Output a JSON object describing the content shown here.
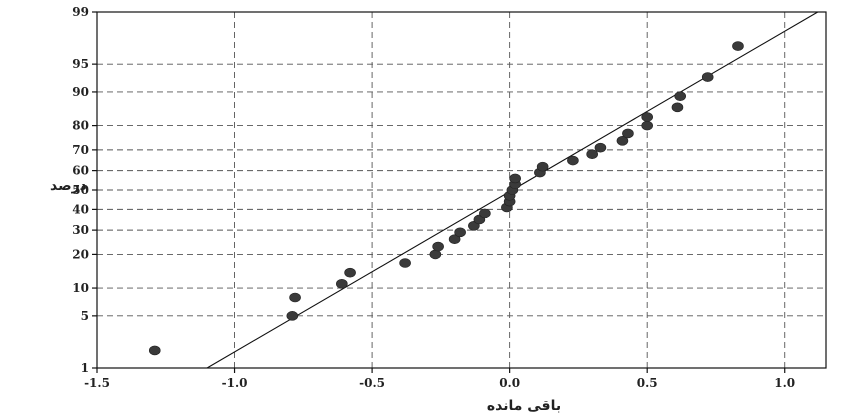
{
  "chart_data": {
    "type": "scatter",
    "title": "",
    "xlabel": "باقی مانده",
    "ylabel": "درصد",
    "xlim": [
      -1.5,
      1.15
    ],
    "x_ticks": [
      -1.5,
      -1.0,
      -0.5,
      0.0,
      0.5,
      1.0
    ],
    "x_tick_labels": [
      "-1.5",
      "-1.0",
      "-0.5",
      "0.0",
      "0.5",
      "1.0"
    ],
    "y_scale": "normal-probability",
    "ylim": [
      1,
      99
    ],
    "y_ticks": [
      1,
      5,
      10,
      20,
      30,
      40,
      50,
      60,
      70,
      80,
      90,
      95,
      99
    ],
    "y_tick_labels": [
      "1",
      "5",
      "10",
      "20",
      "30",
      "40",
      "50",
      "60",
      "70",
      "80",
      "90",
      "95",
      "99"
    ],
    "grid": true,
    "fit_line": {
      "x": [
        -1.1,
        1.12
      ],
      "y": [
        1,
        99
      ]
    },
    "points": [
      {
        "x": -1.29,
        "y": 1.8
      },
      {
        "x": -0.79,
        "y": 5
      },
      {
        "x": -0.78,
        "y": 8
      },
      {
        "x": -0.61,
        "y": 11
      },
      {
        "x": -0.58,
        "y": 14
      },
      {
        "x": -0.38,
        "y": 17
      },
      {
        "x": -0.27,
        "y": 20
      },
      {
        "x": -0.26,
        "y": 23
      },
      {
        "x": -0.2,
        "y": 26
      },
      {
        "x": -0.18,
        "y": 29
      },
      {
        "x": -0.13,
        "y": 32
      },
      {
        "x": -0.11,
        "y": 35
      },
      {
        "x": -0.09,
        "y": 38
      },
      {
        "x": -0.01,
        "y": 41
      },
      {
        "x": 0.0,
        "y": 44
      },
      {
        "x": 0.0,
        "y": 47
      },
      {
        "x": 0.01,
        "y": 50
      },
      {
        "x": 0.02,
        "y": 53
      },
      {
        "x": 0.02,
        "y": 56
      },
      {
        "x": 0.11,
        "y": 59
      },
      {
        "x": 0.12,
        "y": 62
      },
      {
        "x": 0.23,
        "y": 65
      },
      {
        "x": 0.3,
        "y": 68
      },
      {
        "x": 0.33,
        "y": 71
      },
      {
        "x": 0.41,
        "y": 74
      },
      {
        "x": 0.43,
        "y": 77
      },
      {
        "x": 0.5,
        "y": 80
      },
      {
        "x": 0.5,
        "y": 83
      },
      {
        "x": 0.61,
        "y": 86
      },
      {
        "x": 0.62,
        "y": 89
      },
      {
        "x": 0.72,
        "y": 93
      },
      {
        "x": 0.83,
        "y": 97
      }
    ]
  }
}
